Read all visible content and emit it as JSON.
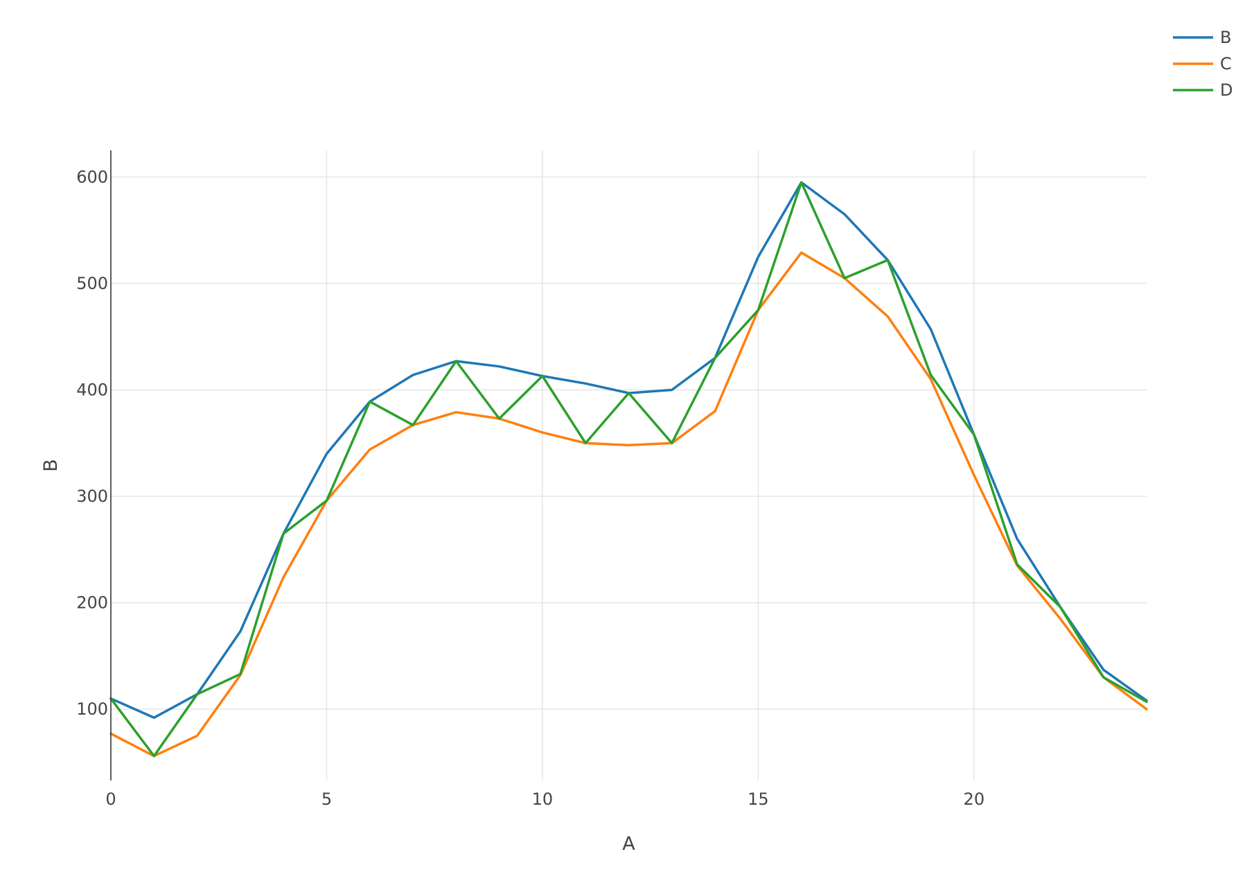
{
  "chart_data": {
    "type": "line",
    "title": "",
    "xlabel": "A",
    "ylabel": "B",
    "xlim": [
      0,
      24
    ],
    "ylim": [
      33,
      625
    ],
    "xticks": [
      0,
      5,
      10,
      15,
      20
    ],
    "yticks": [
      100,
      200,
      300,
      400,
      500,
      600
    ],
    "grid": true,
    "legend_position": "top-right",
    "x": [
      0,
      1,
      2,
      3,
      4,
      5,
      6,
      7,
      8,
      9,
      10,
      11,
      12,
      13,
      14,
      15,
      16,
      17,
      18,
      19,
      20,
      21,
      22,
      23,
      24
    ],
    "series": [
      {
        "name": "B",
        "color": "#1f77b4",
        "values": [
          110,
          92,
          114,
          173,
          265,
          340,
          389,
          414,
          427,
          422,
          413,
          406,
          397,
          400,
          430,
          525,
          595,
          565,
          522,
          457,
          358,
          260,
          196,
          137,
          108
        ]
      },
      {
        "name": "C",
        "color": "#ff7f0e",
        "values": [
          77,
          56,
          75,
          132,
          224,
          296,
          344,
          367,
          379,
          373,
          360,
          350,
          348,
          350,
          380,
          475,
          529,
          505,
          469,
          410,
          320,
          235,
          185,
          130,
          100
        ]
      },
      {
        "name": "D",
        "color": "#2ca02c",
        "values": [
          110,
          56,
          114,
          133,
          265,
          296,
          389,
          367,
          427,
          373,
          413,
          350,
          397,
          350,
          430,
          475,
          595,
          505,
          522,
          414,
          358,
          236,
          196,
          130,
          107
        ]
      }
    ]
  }
}
